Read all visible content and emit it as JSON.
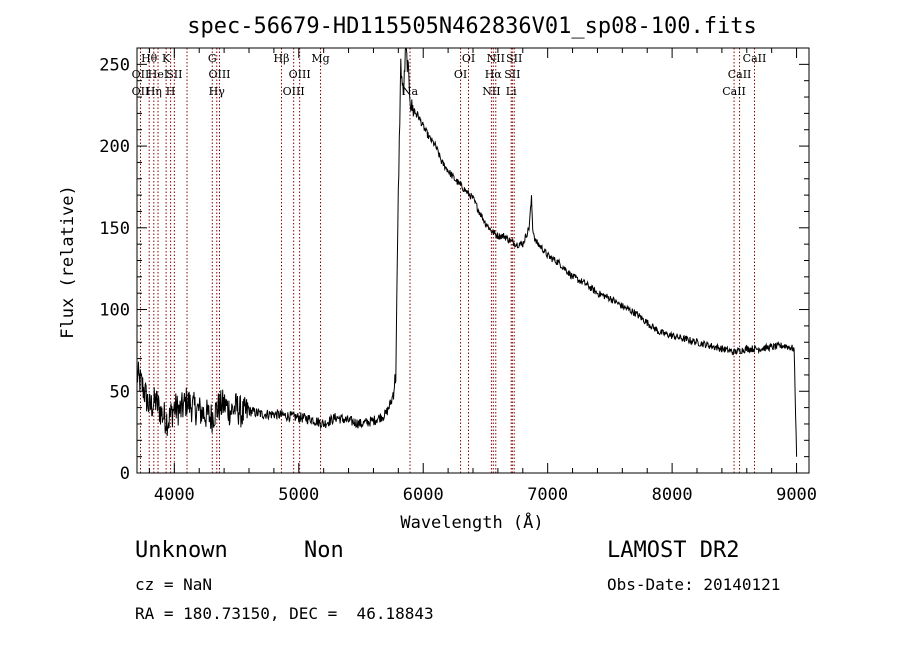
{
  "chart_data": {
    "type": "line",
    "title": "spec-56679-HD115505N462836V01_sp08-100.fits",
    "xlabel": "Wavelength (Å)",
    "ylabel": "Flux (relative)",
    "xlim": [
      3700,
      9100
    ],
    "ylim": [
      0,
      260
    ],
    "xticks": [
      4000,
      5000,
      6000,
      7000,
      8000,
      9000
    ],
    "yticks": [
      0,
      50,
      100,
      150,
      200,
      250
    ],
    "grid": false,
    "line_color": "#000000",
    "marker_color": "#8b0000",
    "series": [
      {
        "x": [
          3700,
          3750,
          3800,
          3850,
          3900,
          3950,
          4000,
          4050,
          4100,
          4150,
          4200,
          4250,
          4300,
          4350,
          4400,
          4450,
          4500,
          4550,
          4600,
          4700,
          4800,
          4900,
          5000,
          5100,
          5200,
          5300,
          5400,
          5500,
          5600,
          5700,
          5750,
          5780,
          5800,
          5820,
          5840,
          5860,
          5880,
          5900,
          5920,
          5950,
          6000,
          6050,
          6100,
          6150,
          6200,
          6250,
          6300,
          6350,
          6400,
          6450,
          6500,
          6550,
          6600,
          6650,
          6700,
          6750,
          6800,
          6850,
          6870,
          6880,
          6900,
          6950,
          7000,
          7100,
          7200,
          7300,
          7400,
          7500,
          7600,
          7700,
          7800,
          7900,
          8000,
          8100,
          8200,
          8300,
          8400,
          8500,
          8600,
          8700,
          8800,
          8900,
          8980,
          9000
        ],
        "y": [
          60,
          52,
          40,
          44,
          36,
          32,
          40,
          38,
          44,
          40,
          38,
          36,
          34,
          40,
          42,
          38,
          40,
          36,
          38,
          36,
          36,
          35,
          34,
          33,
          30,
          34,
          32,
          30,
          32,
          36,
          45,
          60,
          170,
          250,
          230,
          260,
          245,
          225,
          222,
          220,
          212,
          205,
          200,
          190,
          185,
          180,
          176,
          172,
          168,
          160,
          153,
          148,
          145,
          145,
          142,
          140,
          140,
          150,
          168,
          150,
          142,
          138,
          133,
          128,
          120,
          116,
          110,
          107,
          102,
          98,
          92,
          86,
          84,
          82,
          80,
          78,
          76,
          74,
          76,
          76,
          77,
          78,
          76,
          10
        ]
      }
    ],
    "line_markers": [
      {
        "x": 3728,
        "label": "OII",
        "row": 2
      },
      {
        "x": 3728,
        "label": "OII",
        "row": 3
      },
      {
        "x": 3798,
        "label": "Hθ",
        "row": 1
      },
      {
        "x": 3835,
        "label": "Hη",
        "row": 3
      },
      {
        "x": 3869,
        "label": "HeI",
        "row": 2
      },
      {
        "x": 3934,
        "label": "K",
        "row": 1
      },
      {
        "x": 3970,
        "label": "H",
        "row": 3
      },
      {
        "x": 4000,
        "label": "SII",
        "row": 2
      },
      {
        "x": 4102,
        "label": "",
        "row": 0
      },
      {
        "x": 4305,
        "label": "G",
        "row": 1
      },
      {
        "x": 4341,
        "label": "Hγ",
        "row": 3
      },
      {
        "x": 4363,
        "label": "OIII",
        "row": 2
      },
      {
        "x": 4861,
        "label": "Hβ",
        "row": 1
      },
      {
        "x": 4959,
        "label": "OIII",
        "row": 3
      },
      {
        "x": 5007,
        "label": "OIII",
        "row": 2
      },
      {
        "x": 5175,
        "label": "Mg",
        "row": 1
      },
      {
        "x": 5894,
        "label": "Na",
        "row": 3
      },
      {
        "x": 6300,
        "label": "OI",
        "row": 2
      },
      {
        "x": 6364,
        "label": "OI",
        "row": 1
      },
      {
        "x": 6548,
        "label": "NII",
        "row": 3
      },
      {
        "x": 6563,
        "label": "Hα",
        "row": 2
      },
      {
        "x": 6583,
        "label": "NII",
        "row": 1
      },
      {
        "x": 6707,
        "label": "Li",
        "row": 3
      },
      {
        "x": 6716,
        "label": "SII",
        "row": 2
      },
      {
        "x": 6731,
        "label": "SII",
        "row": 1
      },
      {
        "x": 8498,
        "label": "CaII",
        "row": 3
      },
      {
        "x": 8542,
        "label": "CaII",
        "row": 2
      },
      {
        "x": 8662,
        "label": "CaII",
        "row": 1
      }
    ]
  },
  "info": {
    "object_class": "Unknown",
    "subclass": "Non",
    "survey": "LAMOST DR2",
    "redshift": "cz = NaN",
    "obs_date": "Obs-Date: 20140121",
    "coords": "RA = 180.73150, DEC =  46.18843"
  }
}
